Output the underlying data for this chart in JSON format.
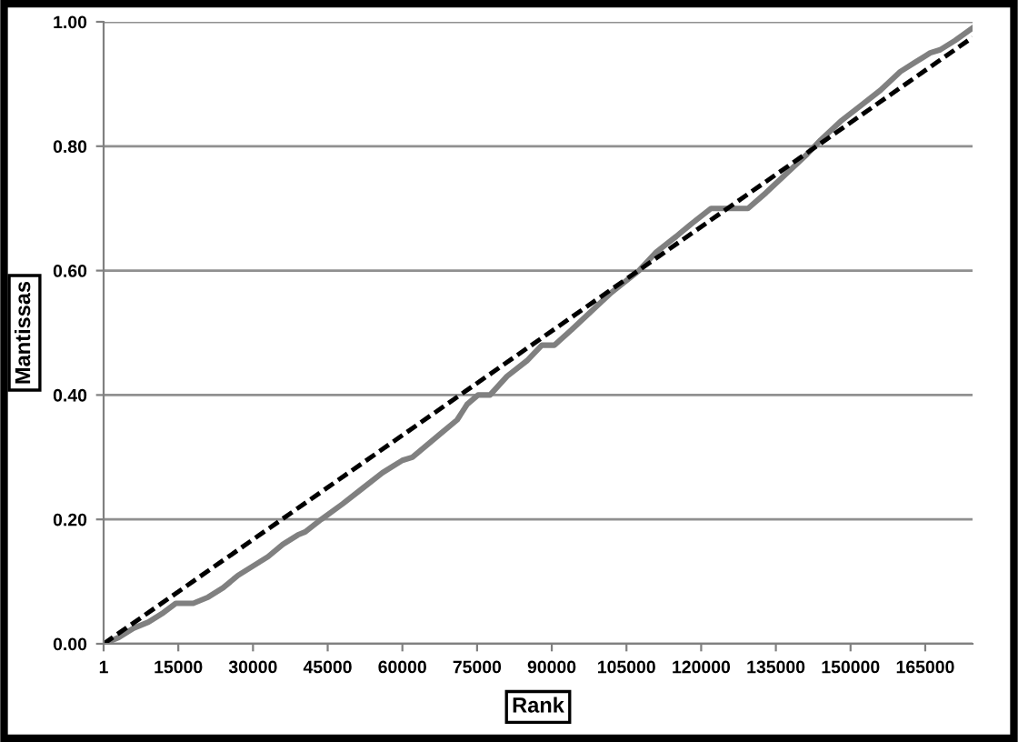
{
  "chart_data": {
    "type": "line",
    "xlabel": "Rank",
    "ylabel": "Mantissas",
    "xlim": [
      1,
      174500
    ],
    "xticks": [
      1,
      15000,
      30000,
      45000,
      60000,
      75000,
      90000,
      105000,
      120000,
      135000,
      150000,
      165000
    ],
    "ylim": [
      0,
      1
    ],
    "yticks": [
      {
        "value": 0,
        "label": "0.00"
      },
      {
        "value": 0.2,
        "label": "0.20"
      },
      {
        "value": 0.4,
        "label": "0.40"
      },
      {
        "value": 0.6,
        "label": "0.60"
      },
      {
        "value": 0.8,
        "label": "0.80"
      },
      {
        "value": 1,
        "label": "1.00"
      }
    ],
    "grid": "y",
    "marker": "none",
    "series": [
      {
        "color": "#808080",
        "line_style": "solid",
        "x": [
          1,
          3000,
          6000,
          9000,
          12000,
          14500,
          18000,
          21000,
          24000,
          27000,
          30000,
          33000,
          36000,
          39000,
          40500,
          43700,
          48000,
          52000,
          56000,
          60000,
          62000,
          65000,
          68000,
          71000,
          73000,
          75200,
          77600,
          81000,
          85000,
          88000,
          90500,
          94000,
          98000,
          102000,
          107500,
          111000,
          115000,
          118000,
          122000,
          129400,
          133000,
          137000,
          141000,
          144000,
          148000,
          152000,
          156000,
          160000,
          163000,
          166000,
          168000,
          171000,
          174500
        ],
        "values": [
          0,
          0.01,
          0.025,
          0.035,
          0.05,
          0.065,
          0.065,
          0.075,
          0.09,
          0.11,
          0.125,
          0.14,
          0.16,
          0.175,
          0.18,
          0.2,
          0.225,
          0.25,
          0.275,
          0.295,
          0.3,
          0.32,
          0.34,
          0.36,
          0.385,
          0.4,
          0.4,
          0.43,
          0.455,
          0.48,
          0.48,
          0.505,
          0.535,
          0.565,
          0.6,
          0.63,
          0.655,
          0.675,
          0.7,
          0.7,
          0.725,
          0.755,
          0.785,
          0.81,
          0.84,
          0.865,
          0.89,
          0.92,
          0.935,
          0.95,
          0.955,
          0.97,
          0.99
        ]
      },
      {
        "color": "#000000",
        "line_style": "dashed",
        "x": [
          1,
          174500
        ],
        "values": [
          0,
          0.975
        ]
      }
    ]
  }
}
